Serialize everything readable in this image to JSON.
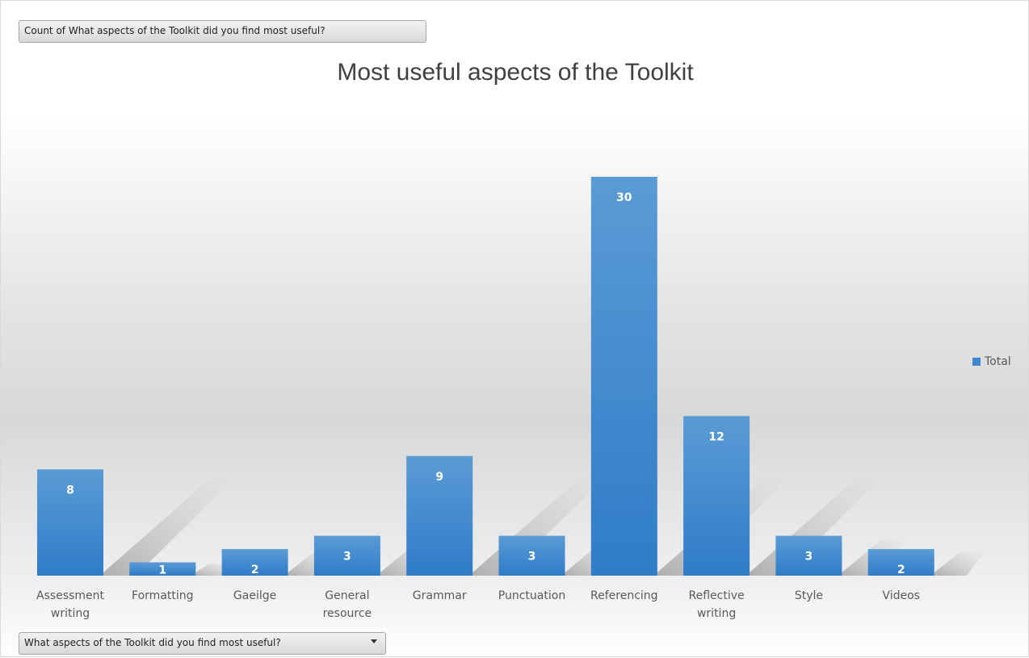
{
  "pivot": {
    "value_field": "Count of What aspects of the Toolkit did you find most useful?",
    "axis_field": "What aspects of the Toolkit did you find most useful?"
  },
  "chart_data": {
    "type": "bar",
    "title": "Most useful aspects of the Toolkit",
    "categories": [
      [
        "Assessment",
        "writing"
      ],
      [
        "Formatting"
      ],
      [
        "Gaeilge"
      ],
      [
        "General",
        "resource"
      ],
      [
        "Grammar"
      ],
      [
        "Punctuation"
      ],
      [
        "Referencing"
      ],
      [
        "Reflective",
        "writing"
      ],
      [
        "Style"
      ],
      [
        "Videos"
      ]
    ],
    "series": [
      {
        "name": "Total",
        "values": [
          8,
          1,
          2,
          3,
          9,
          3,
          30,
          12,
          3,
          2
        ],
        "color": "#3f86cf"
      }
    ],
    "ylim": [
      0,
      30
    ],
    "grid": false,
    "data_labels": true,
    "legend_position": "right"
  }
}
